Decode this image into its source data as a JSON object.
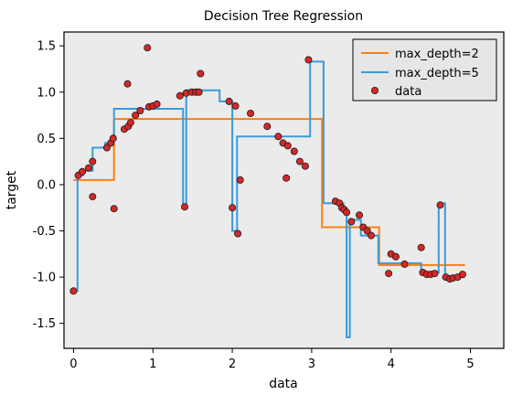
{
  "chart_data": {
    "type": "line",
    "title": "Decision Tree Regression",
    "xlabel": "data",
    "ylabel": "target",
    "xlim": [
      -0.12,
      5.42
    ],
    "ylim": [
      -1.77,
      1.65
    ],
    "xticks": [
      0,
      1,
      2,
      3,
      4,
      5
    ],
    "yticks": [
      -1.5,
      -1.0,
      -0.5,
      0.0,
      0.5,
      1.0,
      1.5
    ],
    "xtick_labels": [
      "0",
      "1",
      "2",
      "3",
      "4",
      "5"
    ],
    "ytick_labels": [
      "-1.5",
      "-1.0",
      "-0.5",
      "0.0",
      "0.5",
      "1.0",
      "1.5"
    ],
    "grid": false,
    "legend_position": "top-right",
    "colors": {
      "plot_background": "#ebebeb",
      "max_depth_2": "#ff7f0e",
      "max_depth_5": "#3a9bd9",
      "data_fill": "#d62728",
      "data_edge": "#1a1a1a"
    },
    "series": [
      {
        "name": "max_depth=2",
        "kind": "step",
        "points": [
          [
            0.0,
            0.05
          ],
          [
            0.51,
            0.05
          ],
          [
            0.51,
            0.71
          ],
          [
            3.13,
            0.71
          ],
          [
            3.13,
            -0.46
          ],
          [
            3.85,
            -0.46
          ],
          [
            3.85,
            -0.87
          ],
          [
            4.93,
            -0.87
          ]
        ]
      },
      {
        "name": "max_depth=5",
        "kind": "step",
        "points": [
          [
            0.0,
            -1.15
          ],
          [
            0.05,
            -1.15
          ],
          [
            0.05,
            0.1
          ],
          [
            0.12,
            0.1
          ],
          [
            0.12,
            0.15
          ],
          [
            0.24,
            0.15
          ],
          [
            0.24,
            0.4
          ],
          [
            0.4,
            0.4
          ],
          [
            0.4,
            0.45
          ],
          [
            0.51,
            0.45
          ],
          [
            0.51,
            0.82
          ],
          [
            1.38,
            0.82
          ],
          [
            1.38,
            -0.25
          ],
          [
            1.42,
            -0.25
          ],
          [
            1.42,
            1.02
          ],
          [
            1.84,
            1.02
          ],
          [
            1.84,
            0.9
          ],
          [
            2.0,
            0.9
          ],
          [
            2.0,
            -0.5
          ],
          [
            2.06,
            -0.5
          ],
          [
            2.06,
            0.52
          ],
          [
            2.98,
            0.52
          ],
          [
            2.98,
            1.33
          ],
          [
            3.15,
            1.33
          ],
          [
            3.15,
            -0.2
          ],
          [
            3.4,
            -0.2
          ],
          [
            3.4,
            -0.3
          ],
          [
            3.44,
            -0.3
          ],
          [
            3.44,
            -1.65
          ],
          [
            3.48,
            -1.65
          ],
          [
            3.48,
            -0.38
          ],
          [
            3.62,
            -0.38
          ],
          [
            3.62,
            -0.55
          ],
          [
            3.84,
            -0.55
          ],
          [
            3.84,
            -0.85
          ],
          [
            4.38,
            -0.85
          ],
          [
            4.38,
            -0.95
          ],
          [
            4.6,
            -0.95
          ],
          [
            4.6,
            -0.2
          ],
          [
            4.68,
            -0.2
          ],
          [
            4.68,
            -1.0
          ],
          [
            4.93,
            -1.0
          ]
        ]
      },
      {
        "name": "data",
        "kind": "scatter",
        "points": [
          [
            0.0,
            -1.15
          ],
          [
            0.06,
            0.1
          ],
          [
            0.11,
            0.14
          ],
          [
            0.19,
            0.18
          ],
          [
            0.24,
            0.25
          ],
          [
            0.24,
            -0.13
          ],
          [
            0.42,
            0.4
          ],
          [
            0.47,
            0.45
          ],
          [
            0.5,
            0.5
          ],
          [
            0.51,
            -0.26
          ],
          [
            0.64,
            0.6
          ],
          [
            0.68,
            1.09
          ],
          [
            0.69,
            0.63
          ],
          [
            0.72,
            0.67
          ],
          [
            0.78,
            0.75
          ],
          [
            0.84,
            0.8
          ],
          [
            0.93,
            1.48
          ],
          [
            0.95,
            0.84
          ],
          [
            1.0,
            0.85
          ],
          [
            1.05,
            0.87
          ],
          [
            1.34,
            0.96
          ],
          [
            1.4,
            -0.24
          ],
          [
            1.42,
            0.99
          ],
          [
            1.49,
            1.0
          ],
          [
            1.54,
            1.0
          ],
          [
            1.58,
            1.0
          ],
          [
            1.6,
            1.2
          ],
          [
            1.96,
            0.9
          ],
          [
            2.0,
            -0.25
          ],
          [
            2.04,
            0.85
          ],
          [
            2.07,
            -0.53
          ],
          [
            2.1,
            0.05
          ],
          [
            2.23,
            0.77
          ],
          [
            2.44,
            0.63
          ],
          [
            2.58,
            0.52
          ],
          [
            2.64,
            0.45
          ],
          [
            2.68,
            0.07
          ],
          [
            2.7,
            0.42
          ],
          [
            2.78,
            0.36
          ],
          [
            2.85,
            0.25
          ],
          [
            2.92,
            0.2
          ],
          [
            2.96,
            1.35
          ],
          [
            3.3,
            -0.18
          ],
          [
            3.35,
            -0.2
          ],
          [
            3.38,
            -0.25
          ],
          [
            3.41,
            -0.27
          ],
          [
            3.44,
            -0.3
          ],
          [
            3.5,
            -0.4
          ],
          [
            3.6,
            -0.33
          ],
          [
            3.65,
            -0.46
          ],
          [
            3.7,
            -0.5
          ],
          [
            3.75,
            -0.55
          ],
          [
            3.97,
            -0.96
          ],
          [
            4.0,
            -0.75
          ],
          [
            4.06,
            -0.78
          ],
          [
            4.17,
            -0.86
          ],
          [
            4.38,
            -0.68
          ],
          [
            4.4,
            -0.95
          ],
          [
            4.45,
            -0.97
          ],
          [
            4.5,
            -0.97
          ],
          [
            4.55,
            -0.96
          ],
          [
            4.62,
            -0.22
          ],
          [
            4.69,
            -1.0
          ],
          [
            4.74,
            -1.02
          ],
          [
            4.78,
            -1.01
          ],
          [
            4.84,
            -1.0
          ],
          [
            4.9,
            -0.97
          ]
        ]
      }
    ]
  }
}
